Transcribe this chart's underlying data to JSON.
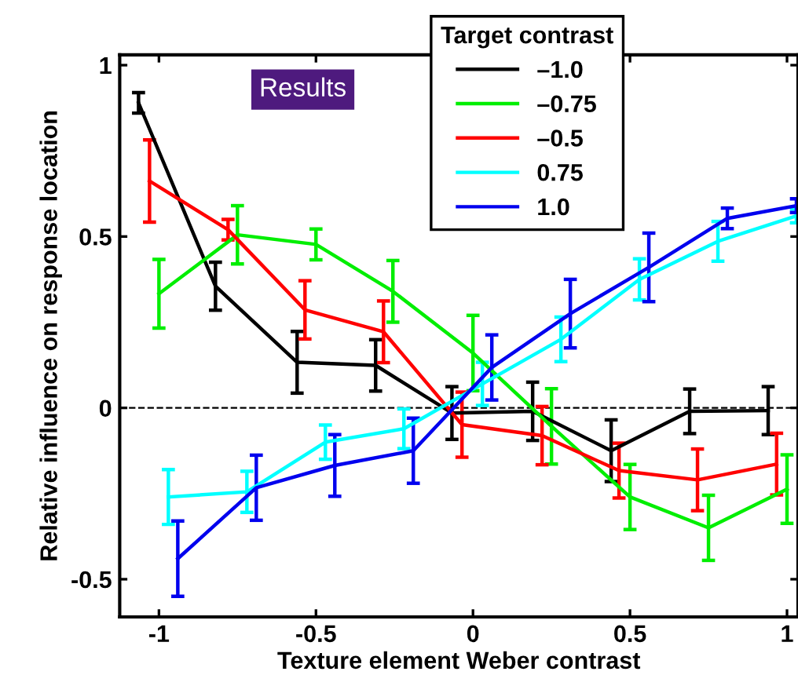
{
  "chart_data": {
    "type": "line",
    "xlabel": "Texture element Weber contrast",
    "ylabel": "Relative influence on response location",
    "legend_title": "Target contrast",
    "legend": "top right",
    "annotations": [
      "Results"
    ],
    "xlim": [
      -1.125,
      1.035
    ],
    "ylim": [
      -0.61,
      1.03
    ],
    "xticks": [
      -1,
      -0.5,
      0,
      0.5,
      1
    ],
    "yticks": [
      -0.5,
      0,
      0.5,
      1
    ],
    "ref_lines": [
      {
        "axis": "y",
        "value": 0,
        "label": null,
        "color": "#000000",
        "line_style": "dashed"
      }
    ],
    "marker": "none",
    "line_style": "solid",
    "grid": false,
    "series": [
      {
        "name": "–1.0",
        "color": "#000000",
        "x": [
          -1.065,
          -0.82,
          -0.56,
          -0.31,
          -0.067,
          0.19,
          0.44,
          0.69,
          0.94
        ],
        "values": [
          0.89,
          0.355,
          0.133,
          0.124,
          -0.015,
          -0.01,
          -0.125,
          -0.01,
          -0.008
        ],
        "errors": [
          0.03,
          0.07,
          0.09,
          0.075,
          0.077,
          0.085,
          0.09,
          0.065,
          0.07
        ]
      },
      {
        "name": "–0.75",
        "color": "#00ee00",
        "x": [
          -1.0,
          -0.75,
          -0.5,
          -0.255,
          0.0,
          0.25,
          0.5,
          0.75,
          1.0
        ],
        "values": [
          0.333,
          0.505,
          0.477,
          0.34,
          0.16,
          -0.054,
          -0.26,
          -0.35,
          -0.237
        ],
        "errors": [
          0.1,
          0.085,
          0.045,
          0.09,
          0.11,
          0.11,
          0.095,
          0.095,
          0.1
        ]
      },
      {
        "name": "–0.5",
        "color": "#ff0000",
        "x": [
          -1.03,
          -0.78,
          -0.535,
          -0.285,
          -0.035,
          0.22,
          0.465,
          0.715,
          0.967
        ],
        "values": [
          0.662,
          0.52,
          0.286,
          0.222,
          -0.049,
          -0.081,
          -0.183,
          -0.21,
          -0.164
        ],
        "errors": [
          0.12,
          0.03,
          0.085,
          0.09,
          0.095,
          0.085,
          0.08,
          0.09,
          0.09
        ]
      },
      {
        "name": "0.75",
        "color": "#00ffff",
        "x": [
          -0.97,
          -0.72,
          -0.47,
          -0.22,
          0.03,
          0.28,
          0.53,
          0.78,
          1.03
        ],
        "values": [
          -0.26,
          -0.245,
          -0.1,
          -0.061,
          0.07,
          0.2,
          0.375,
          0.486,
          0.56
        ],
        "errors": [
          0.08,
          0.06,
          0.05,
          0.058,
          0.063,
          0.065,
          0.06,
          0.058,
          0.02
        ]
      },
      {
        "name": "1.0",
        "color": "#0000ee",
        "x": [
          -0.94,
          -0.69,
          -0.44,
          -0.19,
          0.06,
          0.31,
          0.56,
          0.81,
          1.03
        ],
        "values": [
          -0.44,
          -0.233,
          -0.168,
          -0.125,
          0.118,
          0.275,
          0.41,
          0.553,
          0.59
        ],
        "errors": [
          0.11,
          0.095,
          0.09,
          0.095,
          0.095,
          0.1,
          0.1,
          0.03,
          0.02
        ]
      }
    ]
  }
}
